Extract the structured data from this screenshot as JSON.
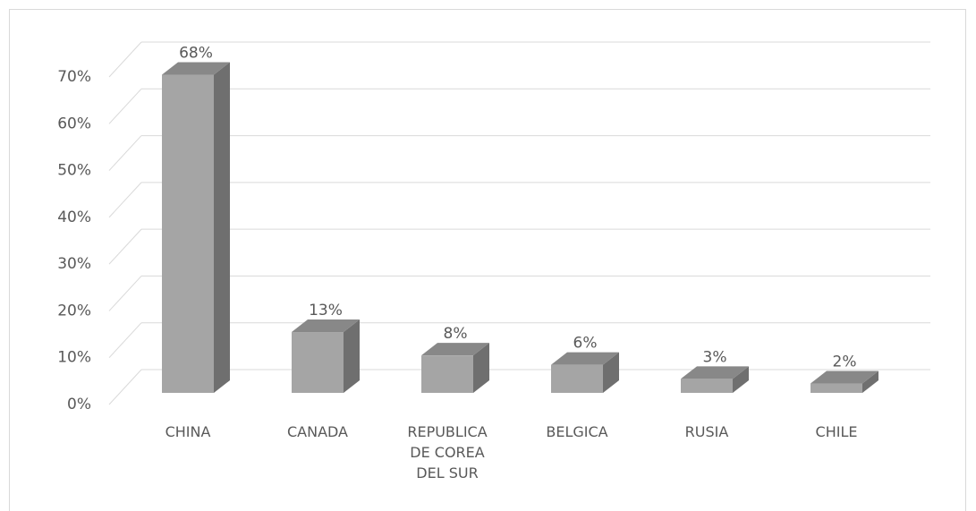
{
  "chart_data": {
    "type": "bar3d",
    "categories": [
      "CHINA",
      "CANADA",
      "REPUBLICA DE COREA DEL SUR",
      "BELGICA",
      "RUSIA",
      "CHILE"
    ],
    "values": [
      68,
      13,
      8,
      6,
      3,
      2
    ],
    "value_labels": [
      "68%",
      "13%",
      "8%",
      "6%",
      "3%",
      "2%"
    ],
    "colors": {
      "front": "#a5a5a5",
      "side": "#6f6f6f",
      "top": "#888888"
    },
    "ylim": [
      0,
      70
    ],
    "yticks": [
      {
        "value": 0,
        "label": "0%"
      },
      {
        "value": 10,
        "label": "10%"
      },
      {
        "value": 20,
        "label": "20%"
      },
      {
        "value": 30,
        "label": "30%"
      },
      {
        "value": 40,
        "label": "40%"
      },
      {
        "value": 50,
        "label": "50%"
      },
      {
        "value": 60,
        "label": "60%"
      },
      {
        "value": 70,
        "label": "70%"
      }
    ],
    "grid": true
  }
}
